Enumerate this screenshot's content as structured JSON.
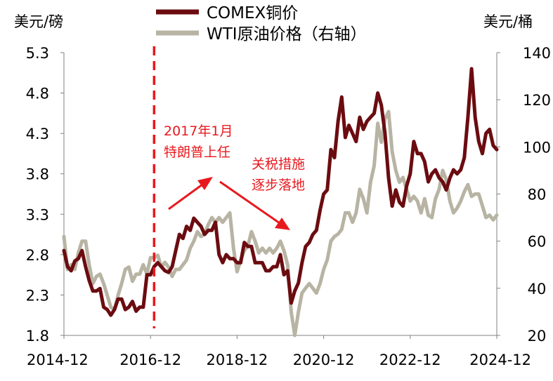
{
  "chart_data": {
    "type": "line",
    "left_unit": "美元/磅",
    "right_unit": "美元/桶",
    "x_ticks": [
      "2014-12",
      "2016-12",
      "2018-12",
      "2020-12",
      "2022-12",
      "2024-12"
    ],
    "y_left_ticks": [
      "5.3",
      "4.8",
      "4.3",
      "3.8",
      "3.3",
      "2.8",
      "2.3",
      "1.8"
    ],
    "y_right_ticks": [
      "140",
      "120",
      "100",
      "80",
      "60",
      "40",
      "20"
    ],
    "ylim_left": [
      1.8,
      5.3
    ],
    "ylim_right": [
      20,
      140
    ],
    "xlim": [
      "2014-12",
      "2024-12"
    ],
    "grid": false,
    "legend_position": "top-center",
    "series": [
      {
        "name": "COMEX铜价",
        "axis": "left",
        "color": "#6b0c10",
        "points": [
          [
            "2014-12",
            2.85
          ],
          [
            "2015-01",
            2.65
          ],
          [
            "2015-02",
            2.6
          ],
          [
            "2015-03",
            2.72
          ],
          [
            "2015-04",
            2.75
          ],
          [
            "2015-05",
            2.85
          ],
          [
            "2015-06",
            2.65
          ],
          [
            "2015-07",
            2.48
          ],
          [
            "2015-08",
            2.35
          ],
          [
            "2015-09",
            2.35
          ],
          [
            "2015-10",
            2.38
          ],
          [
            "2015-11",
            2.15
          ],
          [
            "2015-12",
            2.12
          ],
          [
            "2016-01",
            2.05
          ],
          [
            "2016-02",
            2.12
          ],
          [
            "2016-03",
            2.25
          ],
          [
            "2016-04",
            2.25
          ],
          [
            "2016-05",
            2.12
          ],
          [
            "2016-06",
            2.15
          ],
          [
            "2016-07",
            2.22
          ],
          [
            "2016-08",
            2.1
          ],
          [
            "2016-09",
            2.15
          ],
          [
            "2016-10",
            2.15
          ],
          [
            "2016-11",
            2.55
          ],
          [
            "2016-12",
            2.55
          ],
          [
            "2017-01",
            2.65
          ],
          [
            "2017-02",
            2.7
          ],
          [
            "2017-03",
            2.65
          ],
          [
            "2017-04",
            2.6
          ],
          [
            "2017-05",
            2.58
          ],
          [
            "2017-06",
            2.65
          ],
          [
            "2017-07",
            2.85
          ],
          [
            "2017-08",
            3.05
          ],
          [
            "2017-09",
            3.0
          ],
          [
            "2017-10",
            3.15
          ],
          [
            "2017-11",
            3.1
          ],
          [
            "2017-12",
            3.25
          ],
          [
            "2018-01",
            3.2
          ],
          [
            "2018-02",
            3.15
          ],
          [
            "2018-03",
            3.05
          ],
          [
            "2018-04",
            3.1
          ],
          [
            "2018-05",
            3.1
          ],
          [
            "2018-06",
            3.2
          ],
          [
            "2018-07",
            2.8
          ],
          [
            "2018-08",
            2.7
          ],
          [
            "2018-09",
            2.8
          ],
          [
            "2018-10",
            2.75
          ],
          [
            "2018-11",
            2.75
          ],
          [
            "2018-12",
            2.7
          ],
          [
            "2019-01",
            2.7
          ],
          [
            "2019-02",
            2.95
          ],
          [
            "2019-03",
            2.9
          ],
          [
            "2019-04",
            2.9
          ],
          [
            "2019-05",
            2.7
          ],
          [
            "2019-06",
            2.7
          ],
          [
            "2019-07",
            2.7
          ],
          [
            "2019-08",
            2.6
          ],
          [
            "2019-09",
            2.6
          ],
          [
            "2019-10",
            2.65
          ],
          [
            "2019-11",
            2.65
          ],
          [
            "2019-12",
            2.8
          ],
          [
            "2020-01",
            2.55
          ],
          [
            "2020-02",
            2.6
          ],
          [
            "2020-03",
            2.2
          ],
          [
            "2020-04",
            2.35
          ],
          [
            "2020-05",
            2.45
          ],
          [
            "2020-06",
            2.7
          ],
          [
            "2020-07",
            2.9
          ],
          [
            "2020-08",
            2.95
          ],
          [
            "2020-09",
            3.05
          ],
          [
            "2020-10",
            3.1
          ],
          [
            "2020-11",
            3.35
          ],
          [
            "2020-12",
            3.55
          ],
          [
            "2021-01",
            3.6
          ],
          [
            "2021-02",
            4.1
          ],
          [
            "2021-03",
            4.0
          ],
          [
            "2021-04",
            4.45
          ],
          [
            "2021-05",
            4.75
          ],
          [
            "2021-06",
            4.25
          ],
          [
            "2021-07",
            4.4
          ],
          [
            "2021-08",
            4.3
          ],
          [
            "2021-09",
            4.2
          ],
          [
            "2021-10",
            4.5
          ],
          [
            "2021-11",
            4.35
          ],
          [
            "2021-12",
            4.45
          ],
          [
            "2022-01",
            4.5
          ],
          [
            "2022-02",
            4.55
          ],
          [
            "2022-03",
            4.8
          ],
          [
            "2022-04",
            4.65
          ],
          [
            "2022-05",
            4.3
          ],
          [
            "2022-06",
            3.75
          ],
          [
            "2022-07",
            3.4
          ],
          [
            "2022-08",
            3.6
          ],
          [
            "2022-09",
            3.45
          ],
          [
            "2022-10",
            3.4
          ],
          [
            "2022-11",
            3.65
          ],
          [
            "2022-12",
            3.8
          ],
          [
            "2023-01",
            4.2
          ],
          [
            "2023-02",
            4.05
          ],
          [
            "2023-03",
            4.05
          ],
          [
            "2023-04",
            3.95
          ],
          [
            "2023-05",
            3.7
          ],
          [
            "2023-06",
            3.8
          ],
          [
            "2023-07",
            3.85
          ],
          [
            "2023-08",
            3.75
          ],
          [
            "2023-09",
            3.7
          ],
          [
            "2023-10",
            3.6
          ],
          [
            "2023-11",
            3.75
          ],
          [
            "2023-12",
            3.85
          ],
          [
            "2024-01",
            3.8
          ],
          [
            "2024-02",
            3.85
          ],
          [
            "2024-03",
            4.0
          ],
          [
            "2024-04",
            4.5
          ],
          [
            "2024-05",
            5.1
          ],
          [
            "2024-06",
            4.5
          ],
          [
            "2024-07",
            4.2
          ],
          [
            "2024-08",
            4.05
          ],
          [
            "2024-09",
            4.3
          ],
          [
            "2024-10",
            4.35
          ],
          [
            "2024-11",
            4.15
          ],
          [
            "2024-12",
            4.1
          ]
        ]
      },
      {
        "name": "WTI原油价格（右轴）",
        "axis": "right",
        "color": "#b8b4a4",
        "points": [
          [
            "2014-12",
            62
          ],
          [
            "2015-01",
            48
          ],
          [
            "2015-02",
            50
          ],
          [
            "2015-03",
            48
          ],
          [
            "2015-04",
            55
          ],
          [
            "2015-05",
            60
          ],
          [
            "2015-06",
            60
          ],
          [
            "2015-07",
            50
          ],
          [
            "2015-08",
            42
          ],
          [
            "2015-09",
            45
          ],
          [
            "2015-10",
            46
          ],
          [
            "2015-11",
            42
          ],
          [
            "2015-12",
            37
          ],
          [
            "2016-01",
            32
          ],
          [
            "2016-02",
            31
          ],
          [
            "2016-03",
            37
          ],
          [
            "2016-04",
            42
          ],
          [
            "2016-05",
            48
          ],
          [
            "2016-06",
            49
          ],
          [
            "2016-07",
            43
          ],
          [
            "2016-08",
            46
          ],
          [
            "2016-09",
            46
          ],
          [
            "2016-10",
            50
          ],
          [
            "2016-11",
            46
          ],
          [
            "2016-12",
            53
          ],
          [
            "2017-01",
            53
          ],
          [
            "2017-02",
            54
          ],
          [
            "2017-03",
            49
          ],
          [
            "2017-04",
            51
          ],
          [
            "2017-05",
            49
          ],
          [
            "2017-06",
            45
          ],
          [
            "2017-07",
            48
          ],
          [
            "2017-08",
            48
          ],
          [
            "2017-09",
            50
          ],
          [
            "2017-10",
            52
          ],
          [
            "2017-11",
            57
          ],
          [
            "2017-12",
            60
          ],
          [
            "2018-01",
            64
          ],
          [
            "2018-02",
            62
          ],
          [
            "2018-03",
            63
          ],
          [
            "2018-04",
            67
          ],
          [
            "2018-05",
            70
          ],
          [
            "2018-06",
            68
          ],
          [
            "2018-07",
            70
          ],
          [
            "2018-08",
            68
          ],
          [
            "2018-09",
            70
          ],
          [
            "2018-10",
            72
          ],
          [
            "2018-11",
            57
          ],
          [
            "2018-12",
            47
          ],
          [
            "2019-01",
            52
          ],
          [
            "2019-02",
            56
          ],
          [
            "2019-03",
            58
          ],
          [
            "2019-04",
            64
          ],
          [
            "2019-05",
            60
          ],
          [
            "2019-06",
            55
          ],
          [
            "2019-07",
            57
          ],
          [
            "2019-08",
            55
          ],
          [
            "2019-09",
            57
          ],
          [
            "2019-10",
            55
          ],
          [
            "2019-11",
            57
          ],
          [
            "2019-12",
            60
          ],
          [
            "2020-01",
            56
          ],
          [
            "2020-02",
            50
          ],
          [
            "2020-03",
            30
          ],
          [
            "2020-04",
            20
          ],
          [
            "2020-05",
            30
          ],
          [
            "2020-06",
            38
          ],
          [
            "2020-07",
            40
          ],
          [
            "2020-08",
            42
          ],
          [
            "2020-09",
            40
          ],
          [
            "2020-10",
            38
          ],
          [
            "2020-11",
            42
          ],
          [
            "2020-12",
            48
          ],
          [
            "2021-01",
            52
          ],
          [
            "2021-02",
            60
          ],
          [
            "2021-03",
            62
          ],
          [
            "2021-04",
            63
          ],
          [
            "2021-05",
            65
          ],
          [
            "2021-06",
            72
          ],
          [
            "2021-07",
            72
          ],
          [
            "2021-08",
            68
          ],
          [
            "2021-09",
            72
          ],
          [
            "2021-10",
            82
          ],
          [
            "2021-11",
            78
          ],
          [
            "2021-12",
            72
          ],
          [
            "2022-01",
            85
          ],
          [
            "2022-02",
            92
          ],
          [
            "2022-03",
            110
          ],
          [
            "2022-04",
            102
          ],
          [
            "2022-05",
            112
          ],
          [
            "2022-06",
            115
          ],
          [
            "2022-07",
            98
          ],
          [
            "2022-08",
            90
          ],
          [
            "2022-09",
            85
          ],
          [
            "2022-10",
            87
          ],
          [
            "2022-11",
            82
          ],
          [
            "2022-12",
            77
          ],
          [
            "2023-01",
            79
          ],
          [
            "2023-02",
            77
          ],
          [
            "2023-03",
            72
          ],
          [
            "2023-04",
            78
          ],
          [
            "2023-05",
            71
          ],
          [
            "2023-06",
            70
          ],
          [
            "2023-07",
            78
          ],
          [
            "2023-08",
            82
          ],
          [
            "2023-09",
            90
          ],
          [
            "2023-10",
            86
          ],
          [
            "2023-11",
            77
          ],
          [
            "2023-12",
            72
          ],
          [
            "2024-01",
            74
          ],
          [
            "2024-02",
            77
          ],
          [
            "2024-03",
            81
          ],
          [
            "2024-04",
            84
          ],
          [
            "2024-05",
            79
          ],
          [
            "2024-06",
            80
          ],
          [
            "2024-07",
            80
          ],
          [
            "2024-08",
            75
          ],
          [
            "2024-09",
            70
          ],
          [
            "2024-10",
            71
          ],
          [
            "2024-11",
            69
          ],
          [
            "2024-12",
            71
          ]
        ]
      }
    ],
    "annotations": {
      "event_date": "2017-01",
      "event_label_line1": "2017年1月",
      "event_label_line2": "特朗普上任",
      "tariff_label_line1": "关税措施",
      "tariff_label_line2": "逐步落地"
    },
    "annotation_color": "#e8191e"
  }
}
